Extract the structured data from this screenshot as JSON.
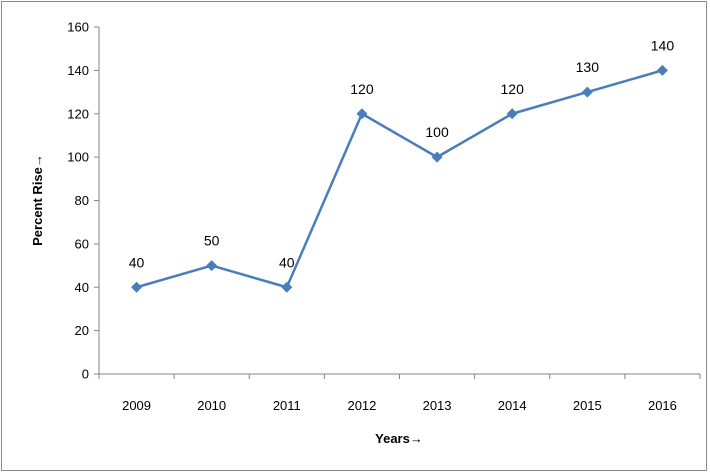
{
  "chart_data": {
    "type": "line",
    "categories": [
      "2009",
      "2010",
      "2011",
      "2012",
      "2013",
      "2014",
      "2015",
      "2016"
    ],
    "series": [
      {
        "values": [
          40,
          50,
          40,
          120,
          100,
          120,
          130,
          140
        ],
        "color": "#4a7ebb",
        "marker": "diamond"
      }
    ],
    "data_labels": [
      "40",
      "50",
      "40",
      "120",
      "100",
      "120",
      "130",
      "140"
    ],
    "title": "",
    "xlabel": "Years→",
    "ylabel": "Percent Rise→",
    "ylim": [
      0,
      160
    ],
    "yticks": [
      "0",
      "20",
      "40",
      "60",
      "80",
      "100",
      "120",
      "140",
      "160"
    ],
    "grid": false,
    "legend": "none"
  }
}
